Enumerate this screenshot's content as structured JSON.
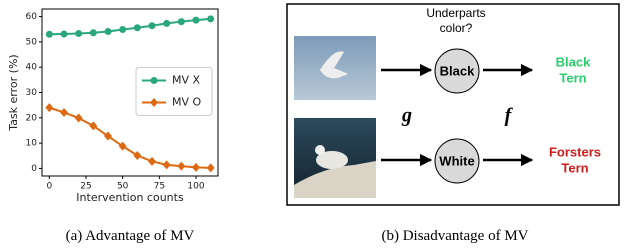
{
  "chart_data": {
    "type": "line",
    "x": [
      0,
      10,
      20,
      30,
      40,
      50,
      60,
      70,
      80,
      90,
      100,
      110
    ],
    "series": [
      {
        "name": "MV X",
        "color": "#2aa77e",
        "marker": "circle",
        "values": [
          53,
          53.1,
          53.3,
          53.6,
          54.1,
          54.9,
          55.6,
          56.4,
          57.3,
          58,
          58.6,
          59.1
        ]
      },
      {
        "name": "MV O",
        "color": "#dd6a12",
        "marker": "diamond",
        "values": [
          24,
          22.1,
          19.9,
          16.8,
          12.8,
          8.8,
          5.1,
          2.8,
          1.4,
          0.9,
          0.4,
          0.2
        ]
      }
    ],
    "xlabel": "Intervention counts",
    "ylabel": "Task error (%)",
    "xlim": [
      -5,
      115
    ],
    "xticks": [
      0,
      25,
      50,
      75,
      100
    ],
    "ylim": [
      -3,
      63
    ],
    "yticks": [
      0,
      10,
      20,
      30,
      40,
      50,
      60
    ],
    "legend": "center right"
  },
  "captions": {
    "left": {
      "prefix": "(a) Advantage of",
      "model": "MV"
    },
    "right": {
      "prefix": "(b) Disadvantage of",
      "model": "MV"
    }
  },
  "diagram": {
    "question": [
      "Underparts",
      "color?"
    ],
    "concepts": [
      "Black",
      "White"
    ],
    "g": "g",
    "f": "f",
    "outputs": [
      [
        "Black",
        "Tern"
      ],
      [
        "Forsters",
        "Tern"
      ]
    ]
  }
}
